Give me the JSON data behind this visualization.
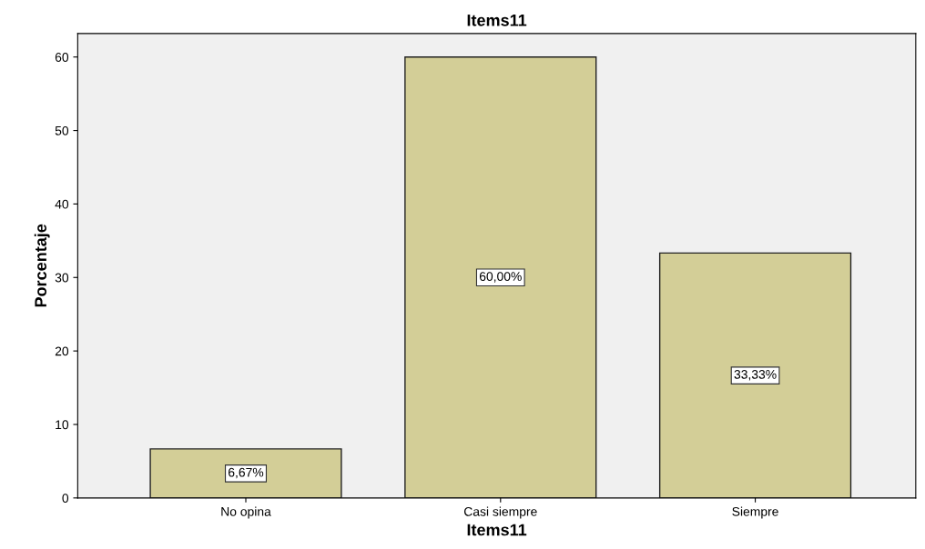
{
  "chart_data": {
    "type": "bar",
    "title": "Items11",
    "xlabel": "Items11",
    "ylabel": "Porcentaje",
    "categories": [
      "No opina",
      "Casi siempre",
      "Siempre"
    ],
    "values": [
      6.67,
      60.0,
      33.33
    ],
    "value_labels": [
      "6,67%",
      "60,00%",
      "33,33%"
    ],
    "color": "#d3ce97",
    "ylim": [
      0,
      63.2
    ],
    "yticks": [
      0,
      10,
      20,
      30,
      40,
      50,
      60
    ],
    "grid": false,
    "legend": false
  }
}
